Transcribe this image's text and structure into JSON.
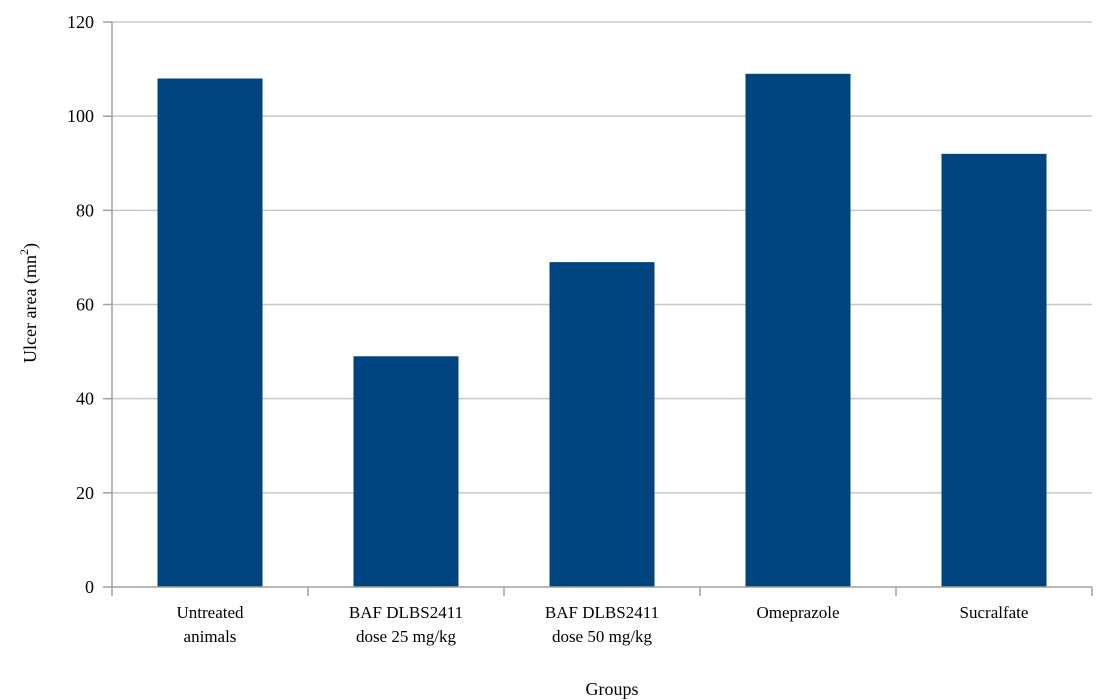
{
  "chart_data": {
    "type": "bar",
    "categories": [
      [
        "Untreated",
        "animals"
      ],
      [
        "BAF DLBS2411",
        "dose 25 mg/kg"
      ],
      [
        "BAF DLBS2411",
        "dose 50 mg/kg"
      ],
      [
        "Omeprazole"
      ],
      [
        "Sucralfate"
      ]
    ],
    "values": [
      108,
      49,
      69,
      109,
      92
    ],
    "xlabel": "Groups",
    "ylabel": {
      "base": "Ulcer area (mn",
      "sup": "2",
      "end": ")"
    },
    "ylim": [
      0,
      120
    ],
    "yticks": [
      0,
      20,
      40,
      60,
      80,
      100,
      120
    ],
    "grid": true,
    "bar_color": "#00447f",
    "grid_color": "#c8c8c8"
  }
}
